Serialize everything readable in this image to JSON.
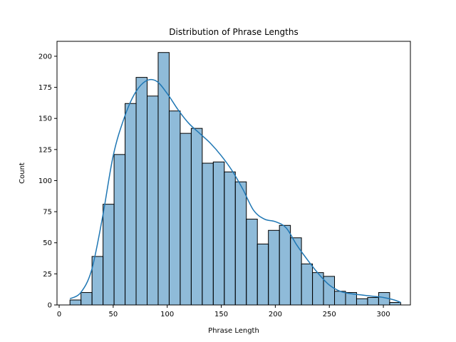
{
  "chart_data": {
    "type": "bar",
    "title": "Distribution of Phrase Lengths",
    "xlabel": "Phrase Length",
    "ylabel": "Count",
    "xlim": [
      -2,
      325
    ],
    "ylim": [
      0,
      212
    ],
    "xticks": [
      0,
      50,
      100,
      150,
      200,
      250,
      300
    ],
    "yticks": [
      0,
      25,
      50,
      75,
      100,
      125,
      150,
      175,
      200
    ],
    "bins": {
      "edges": [
        10.0,
        20.2,
        30.4,
        40.6,
        50.8,
        61.0,
        71.2,
        81.4,
        91.6,
        101.8,
        112.0,
        122.2,
        132.4,
        142.6,
        152.8,
        163.0,
        173.2,
        183.4,
        193.6,
        203.8,
        214.0,
        224.2,
        234.4,
        244.6,
        254.8,
        265.0,
        275.2,
        285.4,
        295.6,
        305.8,
        316.0
      ],
      "counts": [
        4,
        10,
        39,
        81,
        121,
        162,
        183,
        168,
        203,
        156,
        138,
        142,
        114,
        115,
        107,
        99,
        69,
        49,
        60,
        64,
        54,
        33,
        26,
        23,
        11,
        10,
        5,
        6,
        10,
        2
      ]
    },
    "kde": {
      "x": [
        10,
        20,
        30,
        40,
        50,
        60,
        70,
        80,
        90,
        100,
        110,
        120,
        130,
        140,
        150,
        160,
        170,
        180,
        190,
        200,
        210,
        220,
        230,
        240,
        250,
        260,
        270,
        280,
        290,
        300,
        310,
        316
      ],
      "y": [
        5,
        10,
        28,
        70,
        120,
        150,
        170,
        180,
        180,
        170,
        157,
        146,
        138,
        130,
        120,
        108,
        93,
        76,
        69,
        67,
        62,
        48,
        36,
        25,
        16,
        11,
        9,
        8,
        7,
        6,
        4,
        2
      ]
    },
    "colors": {
      "bar_fill": "#1f77b4",
      "bar_fill_opacity": 0.5,
      "bar_edge": "#000000",
      "kde_line": "#1f77b4"
    }
  }
}
